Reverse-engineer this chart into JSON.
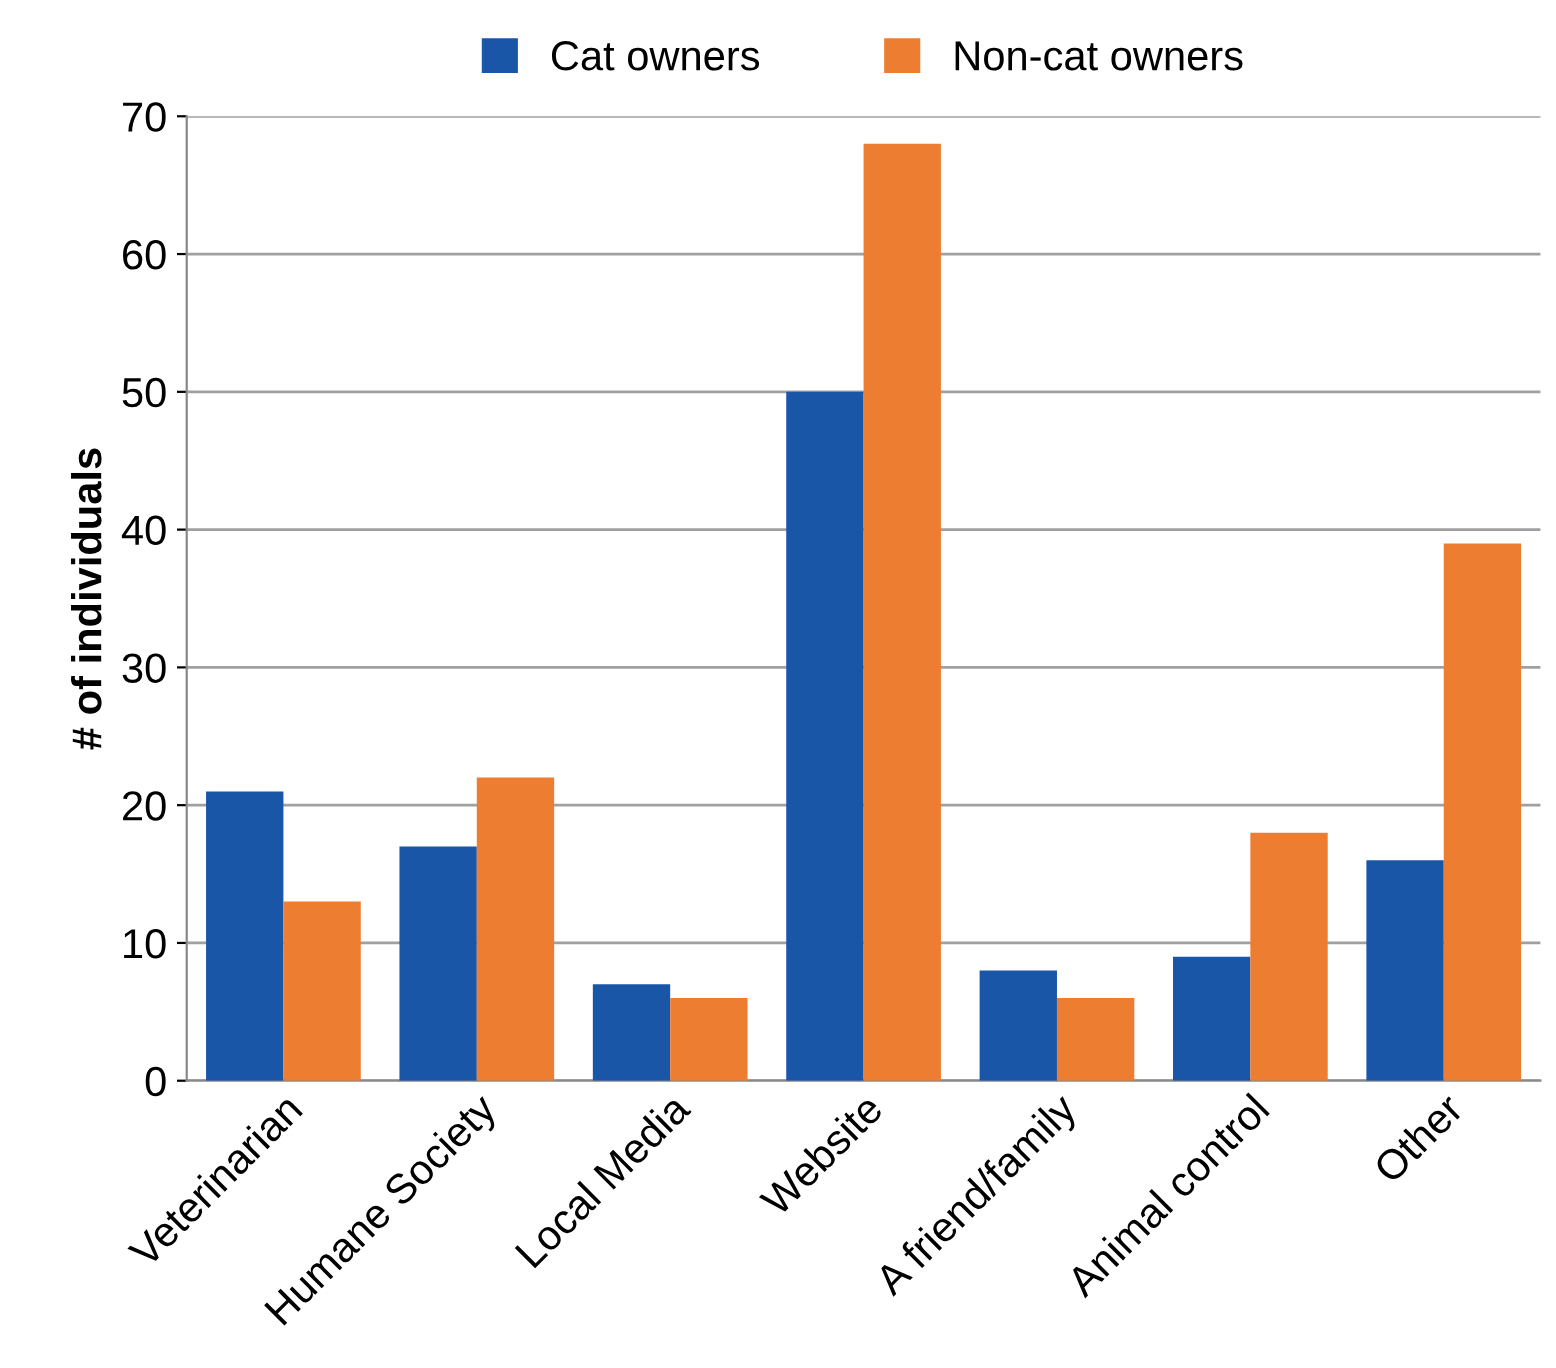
{
  "chart_data": {
    "type": "bar",
    "ylabel": "# of individuals",
    "categories": [
      "Veterinarian",
      "Humane Society",
      "Local Media",
      "Website",
      "A friend/family",
      "Animal control",
      "Other"
    ],
    "series": [
      {
        "name": "Cat owners",
        "color": "#1a56a8",
        "values": [
          21,
          17,
          7,
          50,
          8,
          9,
          16
        ]
      },
      {
        "name": "Non-cat owners",
        "color": "#ed7d31",
        "values": [
          13,
          22,
          6,
          68,
          6,
          18,
          39
        ]
      }
    ],
    "ylim": [
      0,
      70
    ],
    "yticks": [
      0,
      10,
      20,
      30,
      40,
      50,
      60,
      70
    ],
    "grid": "y",
    "legend": "top"
  }
}
